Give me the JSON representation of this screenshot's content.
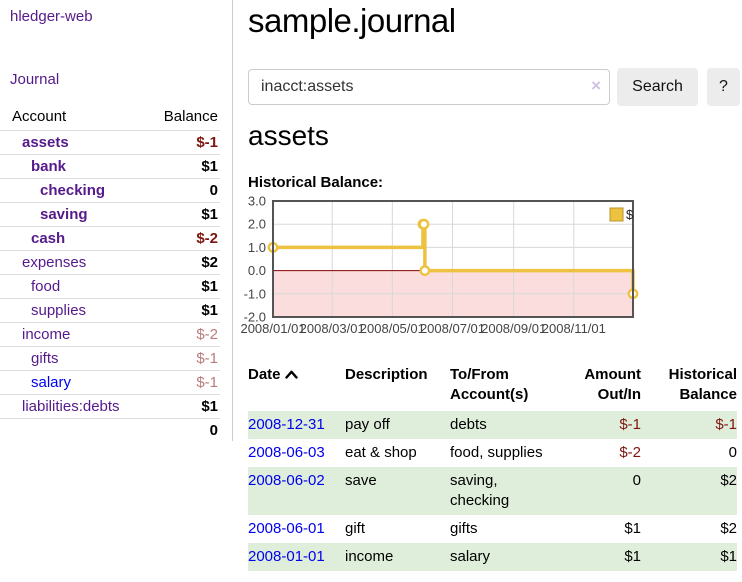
{
  "colors": {
    "purple_link": "#551A8B",
    "blue_link": "#0000EE",
    "negative_strong": "#7f1511",
    "negative_soft": "#b97b7b",
    "stripe_green": "#dfeeda",
    "chart_line": "#EDC240",
    "chart_negative_fill": "#fbdddd",
    "chart_zero_line": "#8b0000",
    "chart_grid": "#d8d8d8",
    "chart_border": "#545454"
  },
  "sidebar": {
    "app_title": "hledger-web",
    "nav_journal": "Journal",
    "accounts_table": {
      "headers": [
        "Account",
        "Balance"
      ],
      "rows": [
        {
          "account": "assets",
          "balance": "$-1",
          "depth": 1,
          "bold": true,
          "balance_color": "neg_strong"
        },
        {
          "account": "bank",
          "balance": "$1",
          "depth": 2,
          "bold": true
        },
        {
          "account": "checking",
          "balance": "0",
          "depth": 3,
          "bold": true
        },
        {
          "account": "saving",
          "balance": "$1",
          "depth": 3,
          "bold": true
        },
        {
          "account": "cash",
          "balance": "$-2",
          "depth": 2,
          "bold": true,
          "balance_color": "neg_strong"
        },
        {
          "account": "expenses",
          "balance": "$2",
          "depth": 1
        },
        {
          "account": "food",
          "balance": "$1",
          "depth": 2
        },
        {
          "account": "supplies",
          "balance": "$1",
          "depth": 2
        },
        {
          "account": "income",
          "balance": "$-2",
          "depth": 1,
          "balance_color": "neg_soft"
        },
        {
          "account": "gifts",
          "balance": "$-1",
          "depth": 2,
          "balance_color": "neg_soft"
        },
        {
          "account": "salary",
          "balance": "$-1",
          "depth": 2,
          "balance_color": "neg_soft",
          "link_color": "blue"
        },
        {
          "account": "liabilities:debts",
          "balance": "$1",
          "depth": 1
        }
      ],
      "total": "0"
    }
  },
  "header": {
    "title": "sample.journal"
  },
  "search": {
    "value": "inacct:assets",
    "clear_icon": "×",
    "search_button": "Search",
    "help_button": "?"
  },
  "account_page": {
    "heading": "assets",
    "section_label": "Historical Balance:"
  },
  "chart_data": {
    "type": "line",
    "step": true,
    "title": "Historical Balance",
    "series": [
      {
        "name": "$",
        "x": [
          "2008-01-01",
          "2008-06-01",
          "2008-06-02",
          "2008-06-03",
          "2008-12-31"
        ],
        "y": [
          1,
          2,
          2,
          0,
          -1
        ]
      }
    ],
    "x_range": [
      "2008-01-01",
      "2008-12-31"
    ],
    "ylim": [
      -2,
      3
    ],
    "yticks": [
      3.0,
      2.0,
      1.0,
      0.0,
      -1.0,
      -2.0
    ],
    "xticks": [
      {
        "date": "2008-01-01",
        "label": "2008/01/01"
      },
      {
        "date": "2008-03-01",
        "label": "2008/03/01"
      },
      {
        "date": "2008-05-01",
        "label": "2008/05/01"
      },
      {
        "date": "2008-07-01",
        "label": "2008/07/01"
      },
      {
        "date": "2008-09-01",
        "label": "2008/09/01"
      },
      {
        "date": "2008-11-01",
        "label": "2008/11/01"
      }
    ],
    "grid": true,
    "legend": {
      "position": "top-right",
      "items": [
        {
          "label": "$",
          "color": "#EDC240"
        }
      ]
    }
  },
  "register_table": {
    "headers": [
      {
        "label": "Date",
        "sort_icon": "caret-up"
      },
      {
        "label": "Description"
      },
      {
        "label": "To/From Account(s)"
      },
      {
        "label": "Amount Out/In",
        "align": "right"
      },
      {
        "label": "Historical Balance",
        "align": "right"
      }
    ],
    "rows": [
      {
        "date": "2008-12-31",
        "description": "pay off",
        "accounts": "debts",
        "amount": "$-1",
        "amount_negative": true,
        "balance": "$-1",
        "balance_negative": true
      },
      {
        "date": "2008-06-03",
        "description": "eat & shop",
        "accounts": "food, supplies",
        "amount": "$-2",
        "amount_negative": true,
        "balance": "0",
        "balance_negative": false
      },
      {
        "date": "2008-06-02",
        "description": "save",
        "accounts": "saving, checking",
        "amount": "0",
        "amount_negative": false,
        "balance": "$2",
        "balance_negative": false
      },
      {
        "date": "2008-06-01",
        "description": "gift",
        "accounts": "gifts",
        "amount": "$1",
        "amount_negative": false,
        "balance": "$2",
        "balance_negative": false
      },
      {
        "date": "2008-01-01",
        "description": "income",
        "accounts": "salary",
        "amount": "$1",
        "amount_negative": false,
        "balance": "$1",
        "balance_negative": false
      }
    ]
  }
}
